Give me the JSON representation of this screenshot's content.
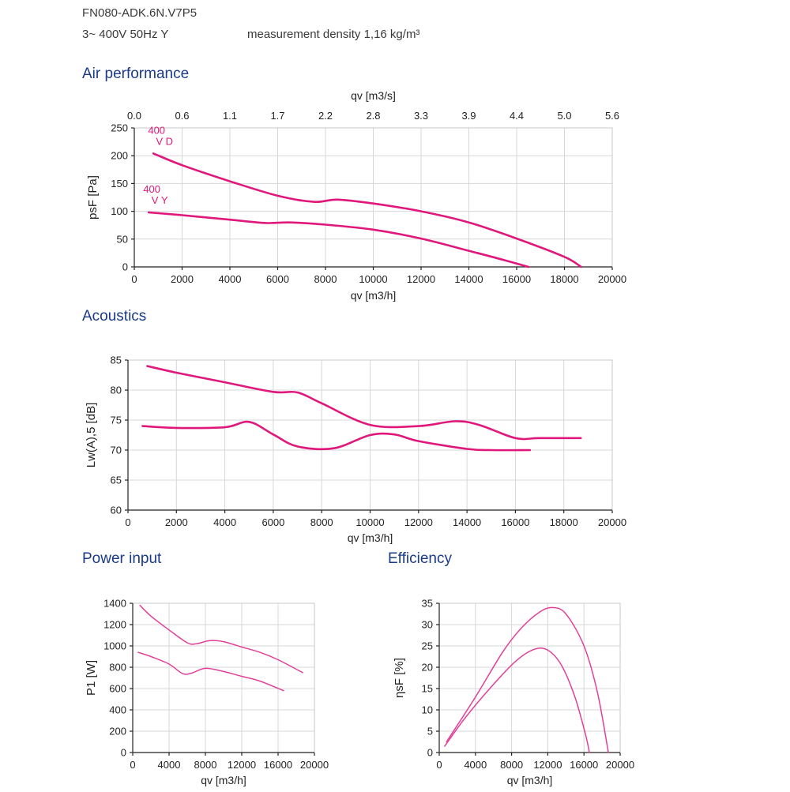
{
  "header": {
    "model": "FN080-ADK.6N.V7P5",
    "supply": "3~ 400V 50Hz Y",
    "density": "measurement density 1,16 kg/m³"
  },
  "sections": {
    "air": "Air performance",
    "acoustics": "Acoustics",
    "power": "Power input",
    "efficiency": "Efficiency"
  },
  "colors": {
    "curve": "#e0187c",
    "curve_thin": "#e0409a",
    "title": "#1a3a8a"
  },
  "chart_data": [
    {
      "id": "air",
      "type": "line",
      "xlabel": "qv [m3/h]",
      "x2label": "qv [m3/s]",
      "ylabel": "psF [Pa]",
      "xlim": [
        0,
        20000
      ],
      "ylim": [
        0,
        250
      ],
      "xticks": [
        "0",
        "2000",
        "4000",
        "6000",
        "8000",
        "10000",
        "12000",
        "14000",
        "16000",
        "18000",
        "20000"
      ],
      "x2ticks": [
        "0.0",
        "0.6",
        "1.1",
        "1.7",
        "2.2",
        "2.8",
        "3.3",
        "3.9",
        "4.4",
        "5.0",
        "5.6"
      ],
      "yticks": [
        "0",
        "50",
        "100",
        "150",
        "200",
        "250"
      ],
      "grid": true,
      "series": [
        {
          "name": "400 V D",
          "labels": [
            "400",
            "V D"
          ],
          "x": [
            800,
            2000,
            4000,
            6000,
            7500,
            8500,
            10000,
            12000,
            14000,
            16000,
            18000,
            18700
          ],
          "y": [
            204,
            183,
            154,
            128,
            117,
            121,
            114,
            100,
            80,
            51,
            18,
            0
          ]
        },
        {
          "name": "400 V Y",
          "labels": [
            "400",
            "V Y"
          ],
          "x": [
            600,
            2000,
            4000,
            5500,
            6500,
            8000,
            10000,
            12000,
            14000,
            15500,
            16500
          ],
          "y": [
            98,
            93,
            85,
            79,
            80,
            76,
            67,
            51,
            29,
            12,
            0
          ]
        }
      ]
    },
    {
      "id": "acoustics",
      "type": "line",
      "xlabel": "qv [m3/h]",
      "ylabel": "Lw(A),5 [dB]",
      "xlim": [
        0,
        20000
      ],
      "ylim": [
        60,
        85
      ],
      "xticks": [
        "0",
        "2000",
        "4000",
        "6000",
        "8000",
        "10000",
        "12000",
        "14000",
        "16000",
        "18000",
        "20000"
      ],
      "yticks": [
        "60",
        "65",
        "70",
        "75",
        "80",
        "85"
      ],
      "grid": true,
      "series": [
        {
          "x": [
            800,
            2000,
            4000,
            6000,
            7000,
            8000,
            10000,
            12000,
            13500,
            14500,
            16000,
            17000,
            18700
          ],
          "y": [
            84,
            82.9,
            81.3,
            79.7,
            79.6,
            77.8,
            74.2,
            74,
            74.8,
            74.2,
            72,
            72,
            72
          ]
        },
        {
          "x": [
            600,
            2000,
            4000,
            5000,
            6000,
            7000,
            8500,
            10000,
            11000,
            12000,
            14000,
            15000,
            16600
          ],
          "y": [
            74,
            73.7,
            73.8,
            74.7,
            72.6,
            70.6,
            70.3,
            72.5,
            72.6,
            71.5,
            70.2,
            70,
            70
          ]
        }
      ]
    },
    {
      "id": "power",
      "type": "line",
      "xlabel": "qv [m3/h]",
      "ylabel": "P1 [W]",
      "xlim": [
        0,
        20000
      ],
      "ylim": [
        0,
        1400
      ],
      "xticks": [
        "0",
        "4000",
        "8000",
        "12000",
        "16000",
        "20000"
      ],
      "yticks": [
        "0",
        "200",
        "400",
        "600",
        "800",
        "1000",
        "1200",
        "1400"
      ],
      "grid": true,
      "series": [
        {
          "x": [
            800,
            2000,
            4000,
            6000,
            7000,
            8500,
            10000,
            12000,
            14000,
            16000,
            18700
          ],
          "y": [
            1380,
            1280,
            1150,
            1030,
            1020,
            1050,
            1040,
            990,
            940,
            870,
            750
          ]
        },
        {
          "x": [
            600,
            2000,
            4000,
            5500,
            6500,
            8000,
            10000,
            12000,
            14000,
            16600
          ],
          "y": [
            940,
            900,
            830,
            740,
            745,
            790,
            760,
            715,
            670,
            580
          ]
        }
      ]
    },
    {
      "id": "efficiency",
      "type": "line",
      "xlabel": "qv [m3/h]",
      "ylabel": "ηsF [%]",
      "xlim": [
        0,
        20000
      ],
      "ylim": [
        0,
        35
      ],
      "xticks": [
        "0",
        "4000",
        "8000",
        "12000",
        "16000",
        "20000"
      ],
      "yticks": [
        "0",
        "5",
        "10",
        "15",
        "20",
        "25",
        "30",
        "35"
      ],
      "grid": true,
      "series": [
        {
          "x": [
            800,
            4000,
            7000,
            9000,
            11000,
            12500,
            14000,
            16000,
            17500,
            18700
          ],
          "y": [
            2.5,
            13,
            23.5,
            29,
            32.8,
            34,
            32.5,
            25,
            14,
            0
          ]
        },
        {
          "x": [
            600,
            3000,
            6000,
            8500,
            10500,
            12000,
            13500,
            15000,
            16200,
            16600
          ],
          "y": [
            1.5,
            8.5,
            16,
            21.5,
            24.2,
            24,
            20.5,
            13,
            4,
            0
          ]
        }
      ]
    }
  ]
}
